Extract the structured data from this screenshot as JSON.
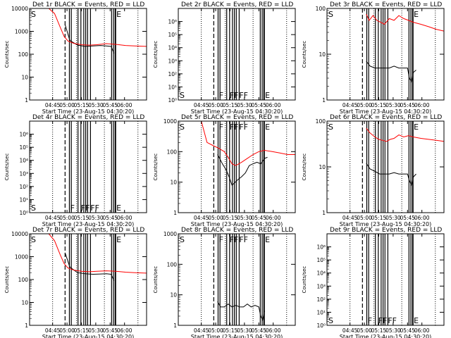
{
  "xlabel": "Start Time (23-Aug-15 04:30:20)",
  "ylabel": "Counts/sec",
  "x_ticks": [
    "04:45",
    "05:00",
    "05:15",
    "05:30",
    "05:45",
    "06:00"
  ],
  "x_range_minutes": [
    -10,
    112
  ],
  "series_colors": {
    "events": "#000000",
    "lld": "#ff0000"
  },
  "event_markers": {
    "dashed_vertical_line_minute": 27,
    "dotted_vertical_line_minutes": [
      14,
      39,
      68,
      103
    ],
    "solid_vertical_line_minutes": [
      31.5,
      33.5,
      40.5,
      43.5,
      46.5,
      48.5,
      50.5,
      53.5,
      75.5,
      77.5
    ],
    "thick_line_minutes": [
      79.5
    ]
  },
  "chart_data": [
    {
      "type": "line",
      "title": "Det 1r BLACK = Events, RED = LLD",
      "yscale": "log",
      "ylim": [
        1,
        10000
      ],
      "y_ticks": [
        "1",
        "10",
        "100",
        "1000",
        "10000"
      ],
      "flag_labels": [
        {
          "text": "S",
          "minute": -10,
          "position": "top"
        },
        {
          "text": "E",
          "minute": 79,
          "position": "top"
        }
      ],
      "series": [
        {
          "name": "Events",
          "x": [
            27,
            32,
            40,
            48,
            56,
            64,
            70,
            75,
            78
          ],
          "y": [
            2000,
            400,
            250,
            220,
            230,
            240,
            230,
            220,
            110
          ]
        },
        {
          "name": "LLD",
          "x": [
            -10,
            10,
            16,
            22,
            26,
            30,
            36,
            44,
            52,
            60,
            70,
            80,
            90,
            100,
            112
          ],
          "y": [
            10000,
            10000,
            6000,
            1500,
            600,
            380,
            300,
            260,
            250,
            260,
            290,
            270,
            240,
            230,
            220
          ]
        }
      ]
    },
    {
      "type": "line",
      "title": "Det 2r BLACK = Events, RED = LLD",
      "yscale": "log",
      "ylim": [
        1,
        10000000
      ],
      "y_ticks": [
        "10⁰",
        "10¹",
        "10²",
        "10³",
        "10⁴",
        "10⁵",
        "10⁶"
      ],
      "flag_labels": [
        {
          "text": "S",
          "minute": -10,
          "position": "bottom"
        },
        {
          "text": "F",
          "minute": 31,
          "position": "bottom"
        },
        {
          "text": "FF",
          "minute": 42,
          "position": "bottom"
        },
        {
          "text": "FF",
          "minute": 52,
          "position": "bottom"
        },
        {
          "text": "E",
          "minute": 79,
          "position": "bottom"
        }
      ],
      "series": []
    },
    {
      "type": "line",
      "title": "Det 3r BLACK = Events, RED = LLD",
      "yscale": "log",
      "ylim": [
        1,
        100
      ],
      "y_ticks": [
        "1",
        "10",
        "100"
      ],
      "flag_labels": [
        {
          "text": "S",
          "minute": -10,
          "position": "top"
        },
        {
          "text": "E",
          "minute": 79,
          "position": "top"
        }
      ],
      "series": [
        {
          "name": "Events",
          "x": [
            31,
            35,
            40,
            45,
            50,
            55,
            60,
            65,
            70,
            74,
            76,
            78,
            80,
            83
          ],
          "y": [
            7,
            5.5,
            5,
            5,
            5,
            5,
            5.5,
            5,
            5,
            5,
            3,
            2.5,
            4,
            4.5
          ]
        },
        {
          "name": "LLD",
          "x": [
            31,
            34,
            38,
            42,
            46,
            50,
            55,
            60,
            65,
            70,
            75,
            80,
            88,
            96,
            104,
            112
          ],
          "y": [
            75,
            55,
            70,
            55,
            50,
            45,
            60,
            55,
            70,
            60,
            55,
            50,
            45,
            40,
            35,
            32
          ]
        }
      ]
    },
    {
      "type": "line",
      "title": "Det 4r BLACK = Events, RED = LLD",
      "yscale": "log",
      "ylim": [
        1,
        10000000
      ],
      "y_ticks": [
        "10⁰",
        "10¹",
        "10²",
        "10³",
        "10⁴",
        "10⁵",
        "10⁶"
      ],
      "flag_labels": [
        {
          "text": "S",
          "minute": -10,
          "position": "bottom"
        },
        {
          "text": "F",
          "minute": 31,
          "position": "bottom"
        },
        {
          "text": "FF",
          "minute": 42,
          "position": "bottom"
        },
        {
          "text": "FF",
          "minute": 52,
          "position": "bottom"
        },
        {
          "text": "E",
          "minute": 79,
          "position": "bottom"
        }
      ],
      "series": []
    },
    {
      "type": "line",
      "title": "Det 5r BLACK = Events, RED = LLD",
      "yscale": "log",
      "ylim": [
        1,
        1000
      ],
      "y_ticks": [
        "1",
        "10",
        "100",
        "1000"
      ],
      "flag_labels": [
        {
          "text": "S",
          "minute": -10,
          "position": "top"
        },
        {
          "text": "F",
          "minute": 31,
          "position": "top"
        },
        {
          "text": "FF",
          "minute": 42,
          "position": "top"
        },
        {
          "text": "FF",
          "minute": 52,
          "position": "top"
        },
        {
          "text": "E",
          "minute": 79,
          "position": "top"
        }
      ],
      "series": [
        {
          "name": "Events",
          "x": [
            31,
            36,
            40,
            43,
            46,
            48,
            52,
            56,
            60,
            64,
            68,
            72,
            76,
            80,
            83
          ],
          "y": [
            80,
            40,
            25,
            15,
            8,
            9,
            12,
            15,
            20,
            35,
            40,
            45,
            40,
            60,
            65
          ]
        },
        {
          "name": "LLD",
          "x": [
            14,
            20,
            26,
            32,
            38,
            42,
            46,
            50,
            56,
            62,
            68,
            74,
            80,
            88,
            96,
            104,
            112
          ],
          "y": [
            1000,
            200,
            160,
            130,
            100,
            65,
            40,
            35,
            45,
            60,
            80,
            100,
            110,
            100,
            90,
            80,
            80
          ]
        }
      ]
    },
    {
      "type": "line",
      "title": "Det 6r BLACK = Events, RED = LLD",
      "yscale": "log",
      "ylim": [
        1,
        100
      ],
      "y_ticks": [
        "1",
        "10",
        "100"
      ],
      "flag_labels": [
        {
          "text": "S",
          "minute": -10,
          "position": "top"
        },
        {
          "text": "E",
          "minute": 79,
          "position": "top"
        }
      ],
      "series": [
        {
          "name": "Events",
          "x": [
            31,
            35,
            40,
            45,
            50,
            55,
            60,
            65,
            70,
            74,
            76,
            78,
            80,
            83
          ],
          "y": [
            12,
            9,
            8,
            7,
            7,
            7,
            7.5,
            7,
            7,
            7,
            5,
            4,
            6,
            7
          ]
        },
        {
          "name": "LLD",
          "x": [
            31,
            35,
            40,
            44,
            48,
            52,
            56,
            60,
            65,
            70,
            75,
            80,
            88,
            96,
            104,
            112
          ],
          "y": [
            70,
            55,
            45,
            40,
            38,
            36,
            40,
            42,
            50,
            45,
            48,
            45,
            42,
            40,
            38,
            36
          ]
        }
      ]
    },
    {
      "type": "line",
      "title": "Det 7r BLACK = Events, RED = LLD",
      "yscale": "log",
      "ylim": [
        1,
        10000
      ],
      "y_ticks": [
        "1",
        "10",
        "100",
        "1000",
        "10000"
      ],
      "flag_labels": [
        {
          "text": "S",
          "minute": -10,
          "position": "top"
        },
        {
          "text": "E",
          "minute": 79,
          "position": "top"
        }
      ],
      "series": [
        {
          "name": "Events",
          "x": [
            27,
            32,
            40,
            48,
            56,
            64,
            70,
            75,
            78
          ],
          "y": [
            1500,
            350,
            200,
            180,
            170,
            175,
            180,
            170,
            90
          ]
        },
        {
          "name": "LLD",
          "x": [
            -10,
            10,
            16,
            22,
            26,
            30,
            36,
            44,
            52,
            60,
            70,
            80,
            90,
            100,
            112
          ],
          "y": [
            10000,
            10000,
            5000,
            1200,
            500,
            320,
            260,
            230,
            220,
            230,
            240,
            230,
            210,
            200,
            190
          ]
        }
      ]
    },
    {
      "type": "line",
      "title": "Det 8r BLACK = Events, RED = LLD",
      "yscale": "log",
      "ylim": [
        1,
        1000
      ],
      "y_ticks": [
        "1",
        "10",
        "100",
        "1000"
      ],
      "flag_labels": [
        {
          "text": "S",
          "minute": -10,
          "position": "top"
        },
        {
          "text": "F",
          "minute": 31,
          "position": "top"
        },
        {
          "text": "FF",
          "minute": 42,
          "position": "top"
        },
        {
          "text": "FF",
          "minute": 52,
          "position": "top"
        },
        {
          "text": "E",
          "minute": 79,
          "position": "top"
        }
      ],
      "series": [
        {
          "name": "Events",
          "x": [
            31,
            34,
            38,
            42,
            46,
            50,
            54,
            58,
            62,
            66,
            70,
            74,
            76,
            78,
            80
          ],
          "y": [
            6,
            4,
            4,
            5,
            4,
            4.5,
            4,
            4,
            5,
            4,
            4.5,
            4,
            2,
            1.5,
            3
          ]
        }
      ]
    },
    {
      "type": "line",
      "title": "Det 9r BLACK = Events, RED = LLD",
      "yscale": "log",
      "ylim": [
        1,
        10000000
      ],
      "y_ticks": [
        "10⁰",
        "10¹",
        "10²",
        "10³",
        "10⁴",
        "10⁵",
        "10⁶"
      ],
      "flag_labels": [
        {
          "text": "S",
          "minute": -10,
          "position": "bottom"
        },
        {
          "text": "F",
          "minute": 31,
          "position": "bottom"
        },
        {
          "text": "FF",
          "minute": 42,
          "position": "bottom"
        },
        {
          "text": "FF",
          "minute": 52,
          "position": "bottom"
        },
        {
          "text": "E",
          "minute": 79,
          "position": "bottom"
        }
      ],
      "series": []
    }
  ]
}
